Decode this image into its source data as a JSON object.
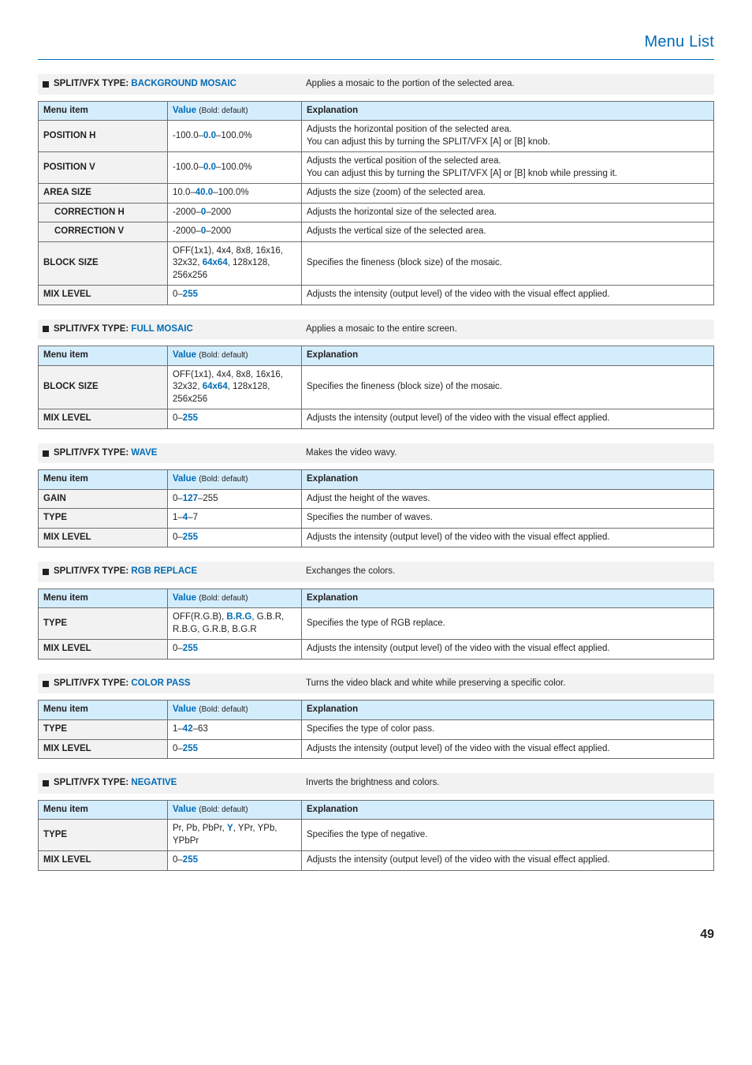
{
  "page": {
    "title": "Menu List",
    "number": "49"
  },
  "cols": {
    "menu": "Menu item",
    "value": "Value",
    "valueNote": "(Bold: default)",
    "expl": "Explanation"
  },
  "sec1": {
    "label": "SPLIT/VFX TYPE:",
    "type": "BACKGROUND MOSAIC",
    "desc": "Applies a mosaic to the portion of the selected area.",
    "rows": {
      "posH": {
        "mi": "POSITION H",
        "va": "-100.0–",
        "vd": "0.0",
        "vb": "–100.0%",
        "ex1": "Adjusts the horizontal position of the selected area.",
        "ex2": "You can adjust this by turning the SPLIT/VFX [A] or [B] knob."
      },
      "posV": {
        "mi": "POSITION V",
        "va": "-100.0–",
        "vd": "0.0",
        "vb": "–100.0%",
        "ex1": "Adjusts the vertical position of the selected area.",
        "ex2": "You can adjust this by turning the SPLIT/VFX [A] or [B] knob while pressing it."
      },
      "area": {
        "mi": "AREA SIZE",
        "va": "10.0–",
        "vd": "40.0",
        "vb": "–100.0%",
        "ex": "Adjusts the size (zoom) of the selected area."
      },
      "corH": {
        "mi": "CORRECTION H",
        "va": "-2000–",
        "vd": "0",
        "vb": "–2000",
        "ex": "Adjusts the horizontal size of the selected area."
      },
      "corV": {
        "mi": "CORRECTION V",
        "va": "-2000–",
        "vd": "0",
        "vb": "–2000",
        "ex": "Adjusts the vertical size of the selected area."
      },
      "blk": {
        "mi": "BLOCK SIZE",
        "va": "OFF(1x1), 4x4, 8x8, 16x16, 32x32, ",
        "vd": "64x64",
        "vb": ", 128x128, 256x256",
        "ex": "Specifies the fineness (block size) of the mosaic."
      },
      "mix": {
        "mi": "MIX LEVEL",
        "va": "0–",
        "vd": "255",
        "vb": "",
        "ex": "Adjusts the intensity (output level) of the video with the visual effect applied."
      }
    }
  },
  "sec2": {
    "label": "SPLIT/VFX TYPE:",
    "type": "FULL MOSAIC",
    "desc": "Applies a mosaic to the entire screen.",
    "rows": {
      "blk": {
        "mi": "BLOCK SIZE",
        "va": "OFF(1x1), 4x4, 8x8, 16x16, 32x32, ",
        "vd": "64x64",
        "vb": ", 128x128, 256x256",
        "ex": "Specifies the fineness (block size) of the mosaic."
      },
      "mix": {
        "mi": "MIX LEVEL",
        "va": "0–",
        "vd": "255",
        "vb": "",
        "ex": "Adjusts the intensity (output level) of the video with the visual effect applied."
      }
    }
  },
  "sec3": {
    "label": "SPLIT/VFX TYPE:",
    "type": "WAVE",
    "desc": "Makes the video wavy.",
    "rows": {
      "gain": {
        "mi": "GAIN",
        "va": "0–",
        "vd": "127",
        "vb": "–255",
        "ex": "Adjust the height of the waves."
      },
      "type": {
        "mi": "TYPE",
        "va": "1–",
        "vd": "4",
        "vb": "–7",
        "ex": "Specifies the number of waves."
      },
      "mix": {
        "mi": "MIX LEVEL",
        "va": "0–",
        "vd": "255",
        "vb": "",
        "ex": "Adjusts the intensity (output level) of the video with the visual effect applied."
      }
    }
  },
  "sec4": {
    "label": "SPLIT/VFX TYPE:",
    "type": "RGB REPLACE",
    "desc": "Exchanges the colors.",
    "rows": {
      "type": {
        "mi": "TYPE",
        "va": "OFF(R.G.B), ",
        "vd": "B.R.G",
        "vb": ", G.B.R, R.B.G, G.R.B, B.G.R",
        "ex": "Specifies the type of RGB replace."
      },
      "mix": {
        "mi": "MIX LEVEL",
        "va": "0–",
        "vd": "255",
        "vb": "",
        "ex": "Adjusts the intensity (output level) of the video with the visual effect applied."
      }
    }
  },
  "sec5": {
    "label": "SPLIT/VFX TYPE:",
    "type": "COLOR PASS",
    "desc": "Turns the video black and white while preserving a specific color.",
    "rows": {
      "type": {
        "mi": "TYPE",
        "va": "1–",
        "vd": "42",
        "vb": "–63",
        "ex": "Specifies the type of color pass."
      },
      "mix": {
        "mi": "MIX LEVEL",
        "va": "0–",
        "vd": "255",
        "vb": "",
        "ex": "Adjusts the intensity (output level) of the video with the visual effect applied."
      }
    }
  },
  "sec6": {
    "label": "SPLIT/VFX TYPE:",
    "type": "NEGATIVE",
    "desc": "Inverts the brightness and colors.",
    "rows": {
      "type": {
        "mi": "TYPE",
        "va": "Pr, Pb, PbPr, ",
        "vd": "Y",
        "vb": ", YPr, YPb, YPbPr",
        "ex": "Specifies the type of negative."
      },
      "mix": {
        "mi": "MIX LEVEL",
        "va": "0–",
        "vd": "255",
        "vb": "",
        "ex": "Adjusts the intensity (output level) of the video with the visual effect applied."
      }
    }
  }
}
